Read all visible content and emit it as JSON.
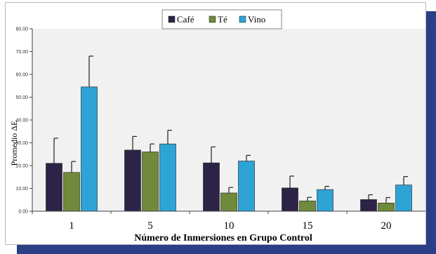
{
  "chart_data": {
    "type": "bar",
    "title": "",
    "xlabel": "Número de Inmersiones en Grupo Control",
    "ylabel": "Promedio ΔE",
    "categories": [
      "1",
      "5",
      "10",
      "15",
      "20"
    ],
    "series": [
      {
        "name": "Café",
        "color": "#2d2346",
        "values": [
          21.0,
          26.8,
          21.2,
          10.2,
          5.1
        ],
        "errors": [
          11.0,
          6.0,
          7.0,
          5.2,
          2.1
        ]
      },
      {
        "name": "Té",
        "color": "#6f8a3c",
        "values": [
          17.0,
          26.0,
          8.0,
          4.5,
          3.6
        ],
        "errors": [
          4.8,
          3.5,
          2.4,
          1.6,
          2.4
        ]
      },
      {
        "name": "Vino",
        "color": "#2ea3d6",
        "values": [
          54.5,
          29.5,
          22.0,
          9.5,
          11.5
        ],
        "errors": [
          13.5,
          6.0,
          2.5,
          1.4,
          3.7
        ]
      }
    ],
    "ylim": [
      0,
      80
    ],
    "yticks": [
      "0.00",
      "10.00",
      "20.00",
      "30.00",
      "40.00",
      "50.00",
      "60.00",
      "70.00",
      "80.00"
    ],
    "grid": false,
    "legend": "top"
  }
}
